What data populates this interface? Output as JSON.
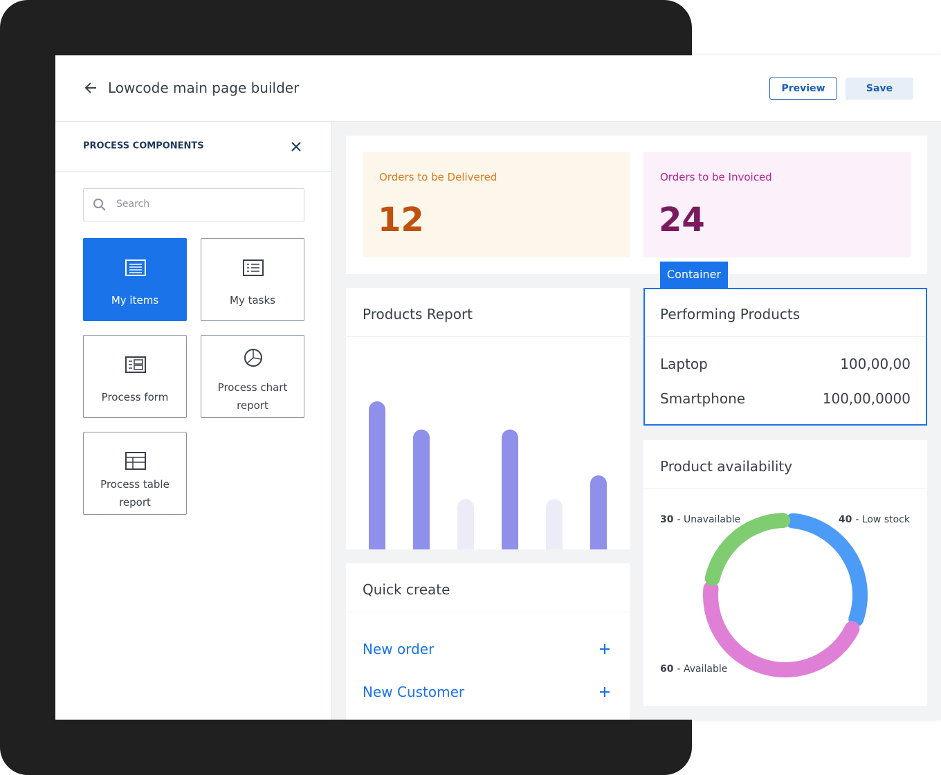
{
  "header": {
    "title": "Lowcode main page builder",
    "buttons": [
      "Preview",
      "Save"
    ]
  },
  "sidebar": {
    "title": "PROCESS COMPONENTS",
    "search_placeholder": "Search",
    "components": [
      {
        "label": "My items",
        "selected": true
      },
      {
        "label": "My tasks",
        "selected": false
      },
      {
        "label": "Process form",
        "selected": false
      },
      {
        "label": "Process chart report",
        "selected": false
      },
      {
        "label": "Process table report",
        "selected": false
      }
    ]
  },
  "stats": [
    {
      "label": "Orders to be Delivered",
      "value": 12
    },
    {
      "label": "Orders to be Invoiced",
      "value": 24
    }
  ],
  "container_tag": "Container",
  "products_report": {
    "type": "bar",
    "title": "Products Report",
    "values": [
      100,
      81,
      34,
      81,
      34,
      50
    ],
    "colors": [
      "#8f90e9",
      "#8f90e9",
      "#ececf8",
      "#8f90e9",
      "#ececf8",
      "#8f90e9"
    ],
    "ylim": [
      0,
      100
    ]
  },
  "performing_products": {
    "title": "Performing Products",
    "rows": [
      {
        "name": "Laptop",
        "value": "100,00,00"
      },
      {
        "name": "Smartphone",
        "value": "100,00,0000"
      }
    ]
  },
  "product_availability": {
    "type": "donut",
    "title": "Product availability",
    "series": [
      {
        "name": "- Low stock",
        "value": 40,
        "color": "#4b9bf7"
      },
      {
        "name": "- Available",
        "value": 60,
        "color": "#e07fd6"
      },
      {
        "name": "- Unavailable",
        "value": 30,
        "color": "#7fcd70"
      }
    ]
  },
  "quick_create": {
    "title": "Quick create",
    "items": [
      "New order",
      "New Customer"
    ]
  }
}
